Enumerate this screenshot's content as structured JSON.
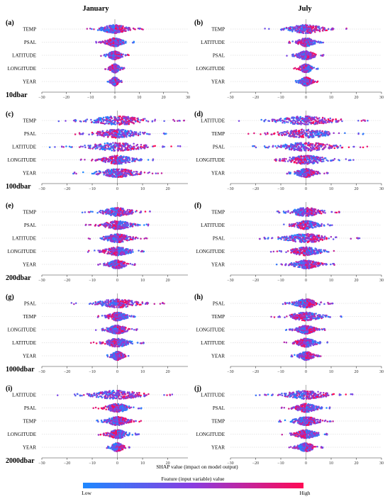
{
  "columns": [
    "January",
    "July"
  ],
  "xlabel": "SHAP value (impact on model output)",
  "colorbar": {
    "title": "Feature (input variable) value",
    "low": "Low",
    "high": "High",
    "low_color": "#1e88ff",
    "high_color": "#ff0a54"
  },
  "chart_data": [
    {
      "type": "scatter",
      "label": "(a)",
      "column": "January",
      "depth": "10dbar",
      "features": [
        "TEMP",
        "PSAL",
        "LATITUDE",
        "LONGITUDE",
        "YEAR"
      ],
      "spread": [
        12,
        8,
        6,
        4,
        3
      ],
      "xlim": [
        -30,
        30
      ],
      "xticks": [
        -30,
        -20,
        -10,
        0,
        10,
        20,
        30
      ]
    },
    {
      "type": "scatter",
      "label": "(b)",
      "column": "July",
      "depth": "",
      "features": [
        "TEMP",
        "LATITUDE",
        "PSAL",
        "LONGITUDE",
        "YEAR"
      ],
      "spread": [
        17,
        7,
        8,
        5,
        5
      ],
      "xlim": [
        -30,
        30
      ],
      "xticks": [
        -30,
        -20,
        -10,
        0,
        10,
        20,
        30
      ]
    },
    {
      "type": "scatter",
      "label": "(c)",
      "column": "January",
      "depth": "100dbar",
      "features": [
        "TEMP",
        "PSAL",
        "LATITUDE",
        "LONGITUDE",
        "YEAR"
      ],
      "spread": [
        28,
        20,
        27,
        15,
        18
      ],
      "xlim": [
        -30,
        28
      ],
      "xticks": [
        -30,
        -20,
        -10,
        0,
        10,
        20
      ]
    },
    {
      "type": "scatter",
      "label": "(d)",
      "column": "July",
      "depth": "",
      "features": [
        "LATITUDE",
        "TEMP",
        "PSAL",
        "LONGITUDE",
        "YEAR"
      ],
      "spread": [
        28,
        24,
        26,
        20,
        9
      ],
      "xlim": [
        -30,
        30
      ],
      "xticks": [
        -30,
        -20,
        -10,
        0,
        10,
        20,
        30
      ]
    },
    {
      "type": "scatter",
      "label": "(e)",
      "column": "January",
      "depth": "200dbar",
      "features": [
        "TEMP",
        "PSAL",
        "LATITUDE",
        "LONGITUDE",
        "YEAR"
      ],
      "spread": [
        14,
        13,
        12,
        12,
        8
      ],
      "xlim": [
        -30,
        28
      ],
      "xticks": [
        -30,
        -20,
        -10,
        0,
        10,
        20
      ]
    },
    {
      "type": "scatter",
      "label": "(f)",
      "column": "July",
      "depth": "",
      "features": [
        "TEMP",
        "LATITUDE",
        "PSAL",
        "LONGITUDE",
        "YEAR"
      ],
      "spread": [
        14,
        11,
        22,
        14,
        12
      ],
      "xlim": [
        -30,
        30
      ],
      "xticks": [
        -30,
        -20,
        -10,
        0,
        10,
        20,
        30
      ]
    },
    {
      "type": "scatter",
      "label": "(g)",
      "column": "January",
      "depth": "1000dbar",
      "features": [
        "PSAL",
        "TEMP",
        "LONGITUDE",
        "LATITUDE",
        "YEAR"
      ],
      "spread": [
        19,
        8,
        9,
        11,
        5
      ],
      "xlim": [
        -30,
        28
      ],
      "xticks": [
        -30,
        -20,
        -10,
        0,
        10,
        20
      ]
    },
    {
      "type": "scatter",
      "label": "(h)",
      "column": "July",
      "depth": "",
      "features": [
        "PSAL",
        "TEMP",
        "LONGITUDE",
        "LATITUDE",
        "YEAR"
      ],
      "spread": [
        11,
        15,
        8,
        9,
        6
      ],
      "xlim": [
        -30,
        30
      ],
      "xticks": [
        -30,
        -20,
        -10,
        0,
        10,
        20,
        30
      ]
    },
    {
      "type": "scatter",
      "label": "(i)",
      "column": "January",
      "depth": "2000dbar",
      "features": [
        "LATITUDE",
        "PSAL",
        "TEMP",
        "LONGITUDE",
        "YEAR"
      ],
      "spread": [
        25,
        10,
        10,
        9,
        5
      ],
      "xlim": [
        -30,
        28
      ],
      "xticks": [
        -30,
        -20,
        -10,
        0,
        10,
        20
      ]
    },
    {
      "type": "scatter",
      "label": "(j)",
      "column": "July",
      "depth": "",
      "features": [
        "LATITUDE",
        "PSAL",
        "TEMP",
        "LONGITUDE",
        "YEAR"
      ],
      "spread": [
        20,
        10,
        11,
        10,
        7
      ],
      "xlim": [
        -30,
        30
      ],
      "xticks": [
        -30,
        -20,
        -10,
        0,
        10,
        20,
        30
      ]
    }
  ]
}
